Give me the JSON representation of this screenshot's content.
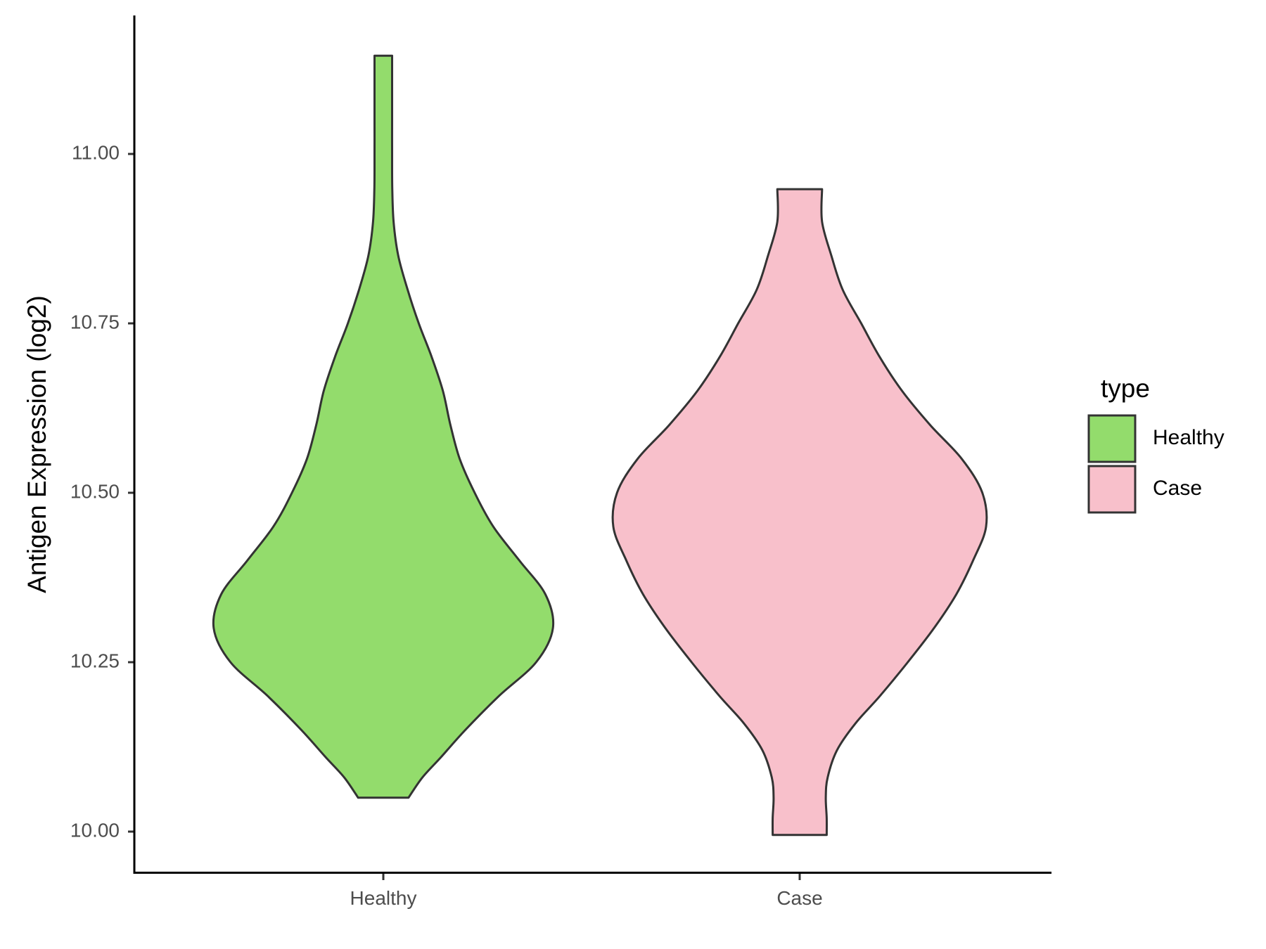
{
  "chart_data": {
    "type": "violin",
    "title": "",
    "xlabel": "",
    "ylabel": "Antigen Expression (log2)",
    "ylim": [
      9.94,
      11.2
    ],
    "yticks": [
      {
        "value": 10.0,
        "label": "10.00"
      },
      {
        "value": 10.25,
        "label": "10.25"
      },
      {
        "value": 10.5,
        "label": "10.50"
      },
      {
        "value": 10.75,
        "label": "10.75"
      },
      {
        "value": 11.0,
        "label": "11.00"
      }
    ],
    "categories": [
      "Healthy",
      "Case"
    ],
    "grid": false,
    "legend": {
      "title": "type",
      "placement": "right",
      "items": [
        {
          "label": "Healthy",
          "color": "#93dc6c"
        },
        {
          "label": "Case",
          "color": "#f8c0cb"
        }
      ]
    },
    "series": [
      {
        "name": "Healthy",
        "color": "#93dc6c",
        "min": 10.05,
        "max": 11.145,
        "density": [
          [
            10.05,
            0.135
          ],
          [
            10.08,
            0.21
          ],
          [
            10.11,
            0.31
          ],
          [
            10.15,
            0.44
          ],
          [
            10.2,
            0.62
          ],
          [
            10.25,
            0.82
          ],
          [
            10.3,
            0.91
          ],
          [
            10.35,
            0.87
          ],
          [
            10.4,
            0.73
          ],
          [
            10.45,
            0.59
          ],
          [
            10.5,
            0.49
          ],
          [
            10.55,
            0.41
          ],
          [
            10.6,
            0.36
          ],
          [
            10.65,
            0.32
          ],
          [
            10.7,
            0.26
          ],
          [
            10.75,
            0.19
          ],
          [
            10.8,
            0.13
          ],
          [
            10.85,
            0.08
          ],
          [
            10.9,
            0.055
          ],
          [
            10.95,
            0.048
          ],
          [
            11.0,
            0.047
          ],
          [
            11.05,
            0.047
          ],
          [
            11.1,
            0.047
          ],
          [
            11.145,
            0.047
          ]
        ]
      },
      {
        "name": "Case",
        "color": "#f8c0cb",
        "min": 9.995,
        "max": 10.948,
        "density": [
          [
            9.995,
            0.145
          ],
          [
            10.02,
            0.145
          ],
          [
            10.05,
            0.14
          ],
          [
            10.08,
            0.15
          ],
          [
            10.12,
            0.2
          ],
          [
            10.16,
            0.3
          ],
          [
            10.2,
            0.43
          ],
          [
            10.25,
            0.58
          ],
          [
            10.3,
            0.72
          ],
          [
            10.35,
            0.84
          ],
          [
            10.4,
            0.93
          ],
          [
            10.45,
            1.0
          ],
          [
            10.5,
            0.98
          ],
          [
            10.55,
            0.87
          ],
          [
            10.6,
            0.7
          ],
          [
            10.65,
            0.55
          ],
          [
            10.7,
            0.43
          ],
          [
            10.75,
            0.33
          ],
          [
            10.8,
            0.23
          ],
          [
            10.85,
            0.17
          ],
          [
            10.9,
            0.12
          ],
          [
            10.948,
            0.12
          ]
        ]
      }
    ]
  }
}
